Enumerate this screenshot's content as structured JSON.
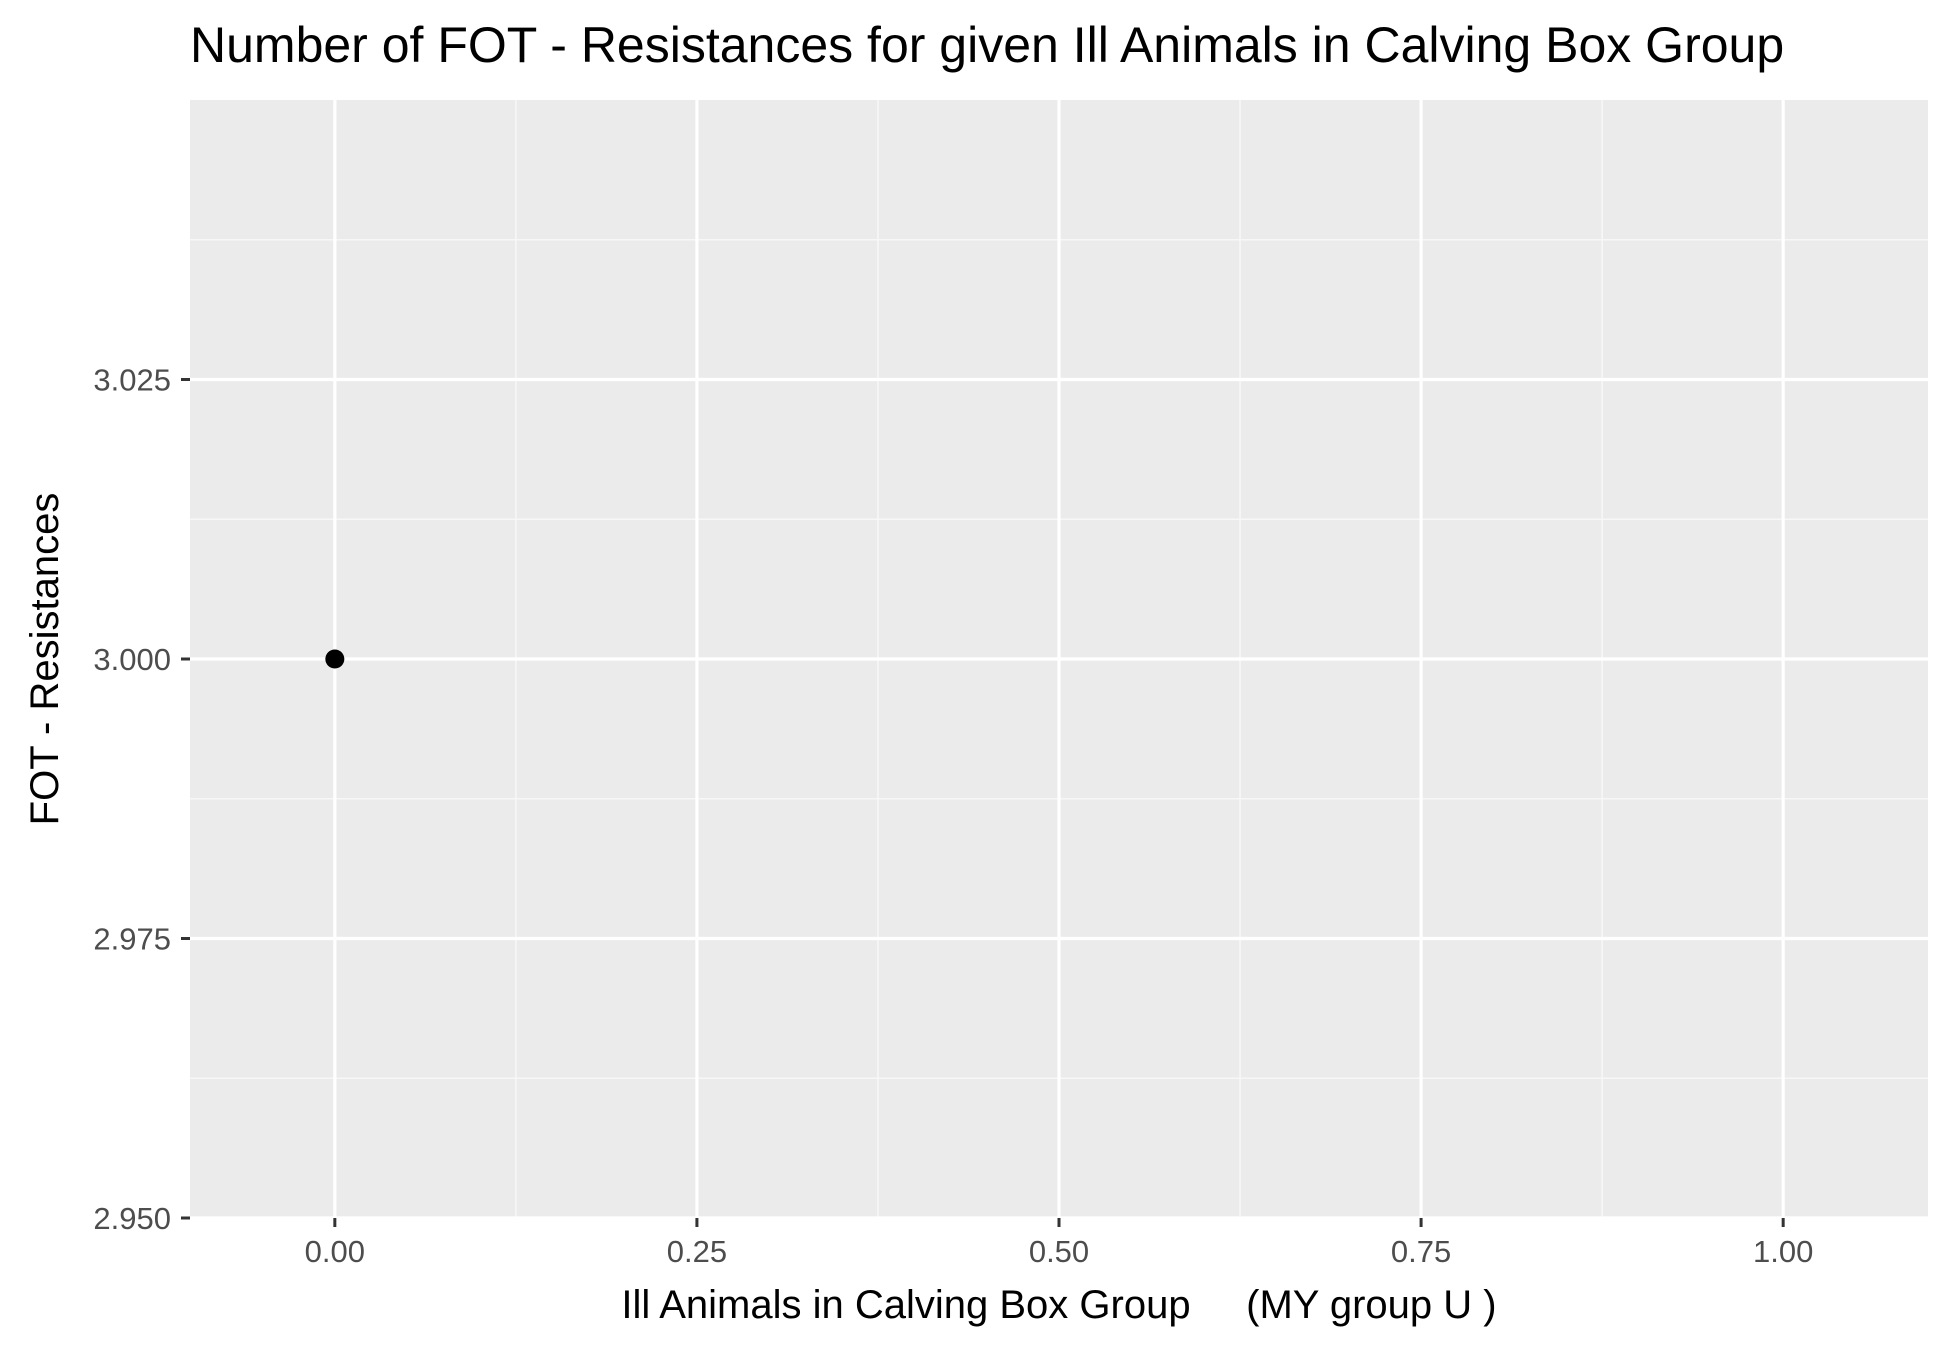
{
  "chart_data": {
    "type": "scatter",
    "title": "Number of FOT - Resistances for given Ill Animals in Calving Box Group",
    "xlabel": "Ill Animals in Calving Box Group     (MY group U )",
    "ylabel": "FOT - Resistances",
    "x_ticks": [
      0.0,
      0.25,
      0.5,
      0.75,
      1.0
    ],
    "x_tick_labels": [
      "0.00",
      "0.25",
      "0.50",
      "0.75",
      "1.00"
    ],
    "y_ticks": [
      2.95,
      2.975,
      3.0,
      3.025
    ],
    "y_tick_labels": [
      "2.950",
      "2.975",
      "3.000",
      "3.025"
    ],
    "xlim": [
      -0.1,
      1.1
    ],
    "ylim": [
      2.95,
      3.05
    ],
    "grid": true,
    "points": [
      {
        "x": 0.0,
        "y": 3.0
      }
    ],
    "colors": {
      "panel_background": "#ebebeb",
      "grid_major": "#ffffff",
      "grid_minor": "#f7f7f7",
      "point": "#000000",
      "tick_mark": "#333333"
    }
  }
}
